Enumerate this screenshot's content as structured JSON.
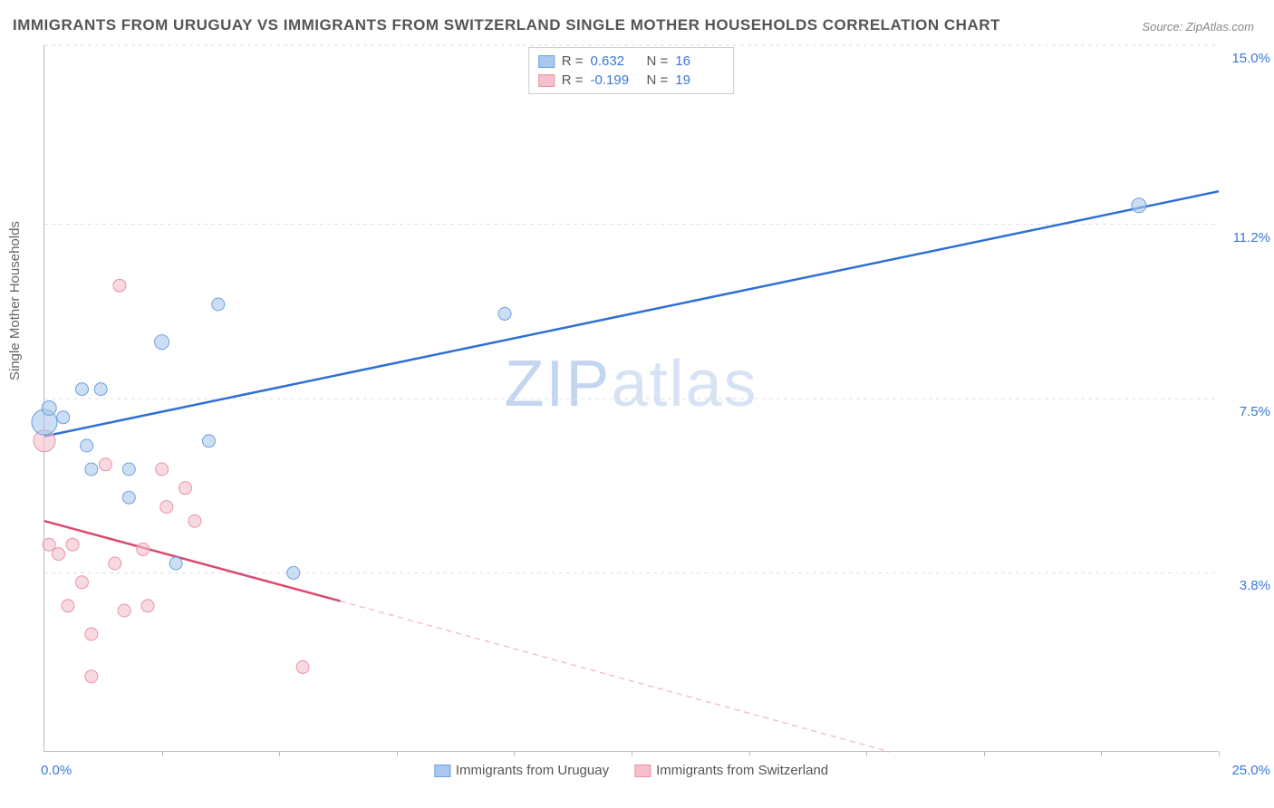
{
  "title": "IMMIGRANTS FROM URUGUAY VS IMMIGRANTS FROM SWITZERLAND SINGLE MOTHER HOUSEHOLDS CORRELATION CHART",
  "source_label": "Source:",
  "source_value": "ZipAtlas.com",
  "ylabel": "Single Mother Households",
  "watermark": "ZIPatlas",
  "colors": {
    "series_a_fill": "#a9c8ed",
    "series_a_stroke": "#6da0e0",
    "series_b_fill": "#f4c0cb",
    "series_b_stroke": "#e993a8",
    "line_a": "#2e6fd4",
    "line_b": "#d94a6f",
    "axis_text": "#3a78d6",
    "grid": "#dddddd",
    "axis": "#bbbbbb",
    "bg": "#ffffff"
  },
  "chart": {
    "type": "scatter",
    "xlim": [
      0,
      25.0
    ],
    "ylim": [
      0,
      15.0
    ],
    "y_gridlines": [
      3.8,
      7.5,
      11.2,
      15.0
    ],
    "y_tick_labels": [
      "3.8%",
      "7.5%",
      "11.2%",
      "15.0%"
    ],
    "x_ticks_at": [
      2.5,
      5.0,
      7.5,
      10.0,
      12.5,
      15.0,
      17.5,
      20.0,
      22.5,
      25.0
    ],
    "x_origin_label": "0.0%",
    "x_max_label": "25.0%"
  },
  "stats": {
    "a": {
      "R": "0.632",
      "N": "16"
    },
    "b": {
      "R": "-0.199",
      "N": "19"
    }
  },
  "legend_bottom": {
    "a": "Immigrants from Uruguay",
    "b": "Immigrants from Switzerland"
  },
  "legend_top_labels": {
    "R": "R =",
    "N": "N ="
  },
  "series_a": {
    "points": [
      {
        "x": 0.0,
        "y": 7.0,
        "r": 14
      },
      {
        "x": 0.1,
        "y": 7.3,
        "r": 8
      },
      {
        "x": 0.4,
        "y": 7.1,
        "r": 7
      },
      {
        "x": 0.8,
        "y": 7.7,
        "r": 7
      },
      {
        "x": 1.2,
        "y": 7.7,
        "r": 7
      },
      {
        "x": 0.9,
        "y": 6.5,
        "r": 7
      },
      {
        "x": 1.0,
        "y": 6.0,
        "r": 7
      },
      {
        "x": 1.8,
        "y": 5.4,
        "r": 7
      },
      {
        "x": 1.8,
        "y": 6.0,
        "r": 7
      },
      {
        "x": 2.5,
        "y": 8.7,
        "r": 8
      },
      {
        "x": 3.7,
        "y": 9.5,
        "r": 7
      },
      {
        "x": 3.5,
        "y": 6.6,
        "r": 7
      },
      {
        "x": 5.3,
        "y": 3.8,
        "r": 7
      },
      {
        "x": 9.8,
        "y": 9.3,
        "r": 7
      },
      {
        "x": 2.8,
        "y": 4.0,
        "r": 7
      },
      {
        "x": 23.3,
        "y": 11.6,
        "r": 8
      }
    ],
    "trend": {
      "x1": 0,
      "y1": 6.7,
      "x2": 25,
      "y2": 11.9
    }
  },
  "series_b": {
    "points": [
      {
        "x": 0.0,
        "y": 6.6,
        "r": 12
      },
      {
        "x": 0.3,
        "y": 4.2,
        "r": 7
      },
      {
        "x": 0.1,
        "y": 4.4,
        "r": 7
      },
      {
        "x": 0.6,
        "y": 4.4,
        "r": 7
      },
      {
        "x": 0.8,
        "y": 3.6,
        "r": 7
      },
      {
        "x": 0.5,
        "y": 3.1,
        "r": 7
      },
      {
        "x": 1.0,
        "y": 2.5,
        "r": 7
      },
      {
        "x": 1.3,
        "y": 6.1,
        "r": 7
      },
      {
        "x": 1.5,
        "y": 4.0,
        "r": 7
      },
      {
        "x": 1.7,
        "y": 3.0,
        "r": 7
      },
      {
        "x": 1.0,
        "y": 1.6,
        "r": 7
      },
      {
        "x": 2.1,
        "y": 4.3,
        "r": 7
      },
      {
        "x": 2.2,
        "y": 3.1,
        "r": 7
      },
      {
        "x": 2.5,
        "y": 6.0,
        "r": 7
      },
      {
        "x": 2.6,
        "y": 5.2,
        "r": 7
      },
      {
        "x": 3.0,
        "y": 5.6,
        "r": 7
      },
      {
        "x": 3.2,
        "y": 4.9,
        "r": 7
      },
      {
        "x": 5.5,
        "y": 1.8,
        "r": 7
      },
      {
        "x": 1.6,
        "y": 9.9,
        "r": 7
      }
    ],
    "trend_solid": {
      "x1": 0,
      "y1": 4.9,
      "x2": 6.3,
      "y2": 3.2
    },
    "trend_dash": {
      "x1": 6.3,
      "y1": 3.2,
      "x2": 18.0,
      "y2": 0.0
    }
  }
}
